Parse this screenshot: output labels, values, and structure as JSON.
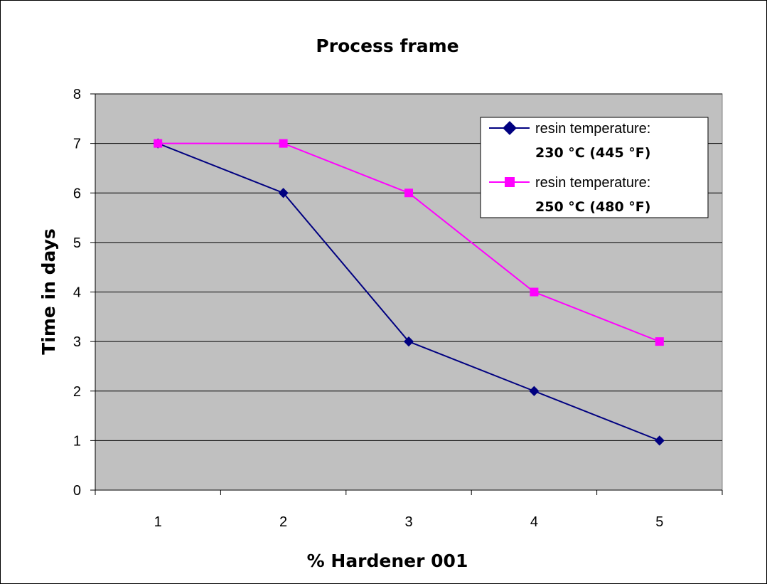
{
  "chart_data": {
    "type": "line",
    "title": "Process frame",
    "xlabel": "% Hardener 001",
    "ylabel": "Time in days",
    "categories": [
      "1",
      "2",
      "3",
      "4",
      "5"
    ],
    "ylim": [
      0,
      8
    ],
    "yticks": [
      "0",
      "1",
      "2",
      "3",
      "4",
      "5",
      "6",
      "7",
      "8"
    ],
    "grid": true,
    "legend_position": "top-right",
    "series": [
      {
        "name": "resin temperature: 230 °C (445 °F)",
        "name_line1": "resin temperature:",
        "name_line2": "230 °C (445 °F)",
        "color": "#000080",
        "marker": "diamond",
        "values": [
          7,
          6,
          3,
          2,
          1
        ]
      },
      {
        "name": "resin temperature: 250 °C (480 °F)",
        "name_line1": "resin temperature:",
        "name_line2": "250 °C (480 °F)",
        "color": "#ff00ff",
        "marker": "square",
        "values": [
          7,
          7,
          6,
          4,
          3
        ]
      }
    ],
    "plot_background": "#c0c0c0",
    "gridline_color": "#000000"
  }
}
